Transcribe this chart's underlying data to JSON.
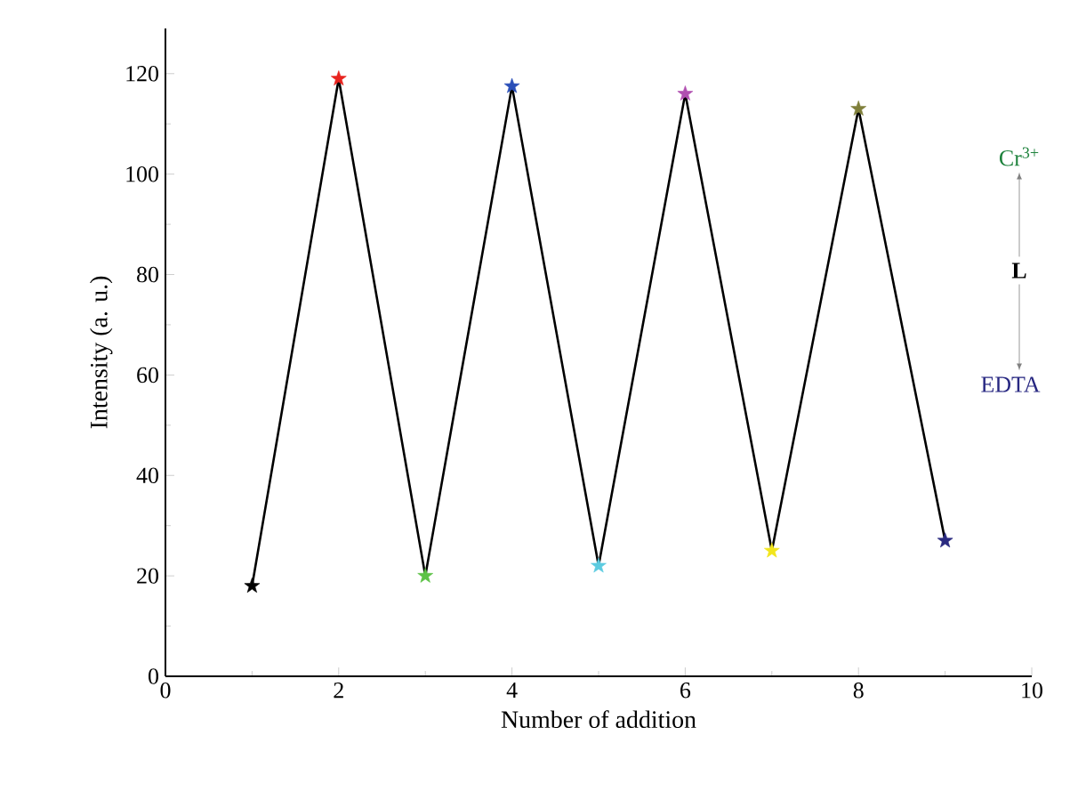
{
  "chart_data": {
    "type": "line",
    "xlabel": "Number of addition",
    "ylabel": "Intensity (a. u.)",
    "x": [
      1,
      2,
      3,
      4,
      5,
      6,
      7,
      8,
      9
    ],
    "series": [
      {
        "color": "#000000",
        "colors": [
          "#000000",
          "#e8231e",
          "#5cc246",
          "#2a4fb8",
          "#5ccbe0",
          "#b04fb0",
          "#f2e51c",
          "#7f7f3a",
          "#2a2a80"
        ],
        "values": [
          18,
          119,
          20,
          117.5,
          22,
          116,
          25,
          113,
          27
        ]
      }
    ],
    "marker": "star",
    "line_style": "solid",
    "xlim": [
      0,
      10
    ],
    "xticks": [
      0,
      2,
      4,
      6,
      8,
      10
    ],
    "ylim": [
      0,
      129
    ],
    "yticks": [
      0,
      20,
      40,
      60,
      80,
      100,
      120
    ],
    "annotations": [
      "Cr$^{3+}$",
      "L",
      "EDTA"
    ]
  }
}
